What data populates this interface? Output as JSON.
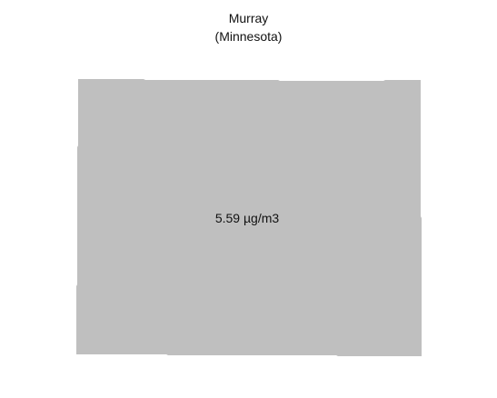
{
  "map": {
    "title": "Murray",
    "subtitle": "(Minnesota)",
    "region": {
      "value_label": "5.59 µg/m3",
      "fill_color": "#bfbfbf"
    }
  }
}
